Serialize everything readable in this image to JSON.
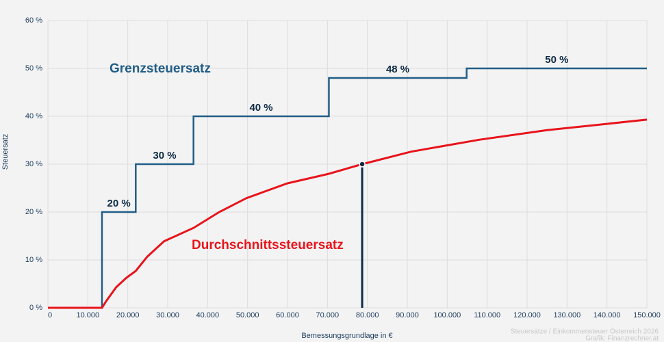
{
  "chart_data": {
    "type": "line",
    "x_label": "Bemessungsgrundlage in €",
    "y_label": "Steuersatz",
    "xlim": [
      0,
      150000
    ],
    "ylim": [
      0,
      60
    ],
    "xticks": [
      0,
      {
        "value": 10000,
        "label": "10.000"
      },
      {
        "value": 20000,
        "label": "20.000"
      },
      {
        "value": 30000,
        "label": "30.000"
      },
      {
        "value": 40000,
        "label": "40.000"
      },
      {
        "value": 50000,
        "label": "50.000"
      },
      {
        "value": 60000,
        "label": "60.000"
      },
      {
        "value": 70000,
        "label": "70.000"
      },
      {
        "value": 80000,
        "label": "80.000"
      },
      {
        "value": 90000,
        "label": "90.000"
      },
      {
        "value": 100000,
        "label": "100.000"
      },
      {
        "value": 110000,
        "label": "110.000"
      },
      {
        "value": 120000,
        "label": "120.000"
      },
      {
        "value": 130000,
        "label": "130.000"
      },
      {
        "value": 140000,
        "label": "140.000"
      },
      {
        "value": 150000,
        "label": "150.000"
      }
    ],
    "yticks": [
      {
        "value": 0,
        "label": "0 %"
      },
      {
        "value": 10,
        "label": "10 %"
      },
      {
        "value": 20,
        "label": "20 %"
      },
      {
        "value": 30,
        "label": "30 %"
      },
      {
        "value": 40,
        "label": "40 %"
      },
      {
        "value": 50,
        "label": "50 %"
      },
      {
        "value": 60,
        "label": "60 %"
      }
    ],
    "grid": true,
    "series": [
      {
        "name": "Grenzsteuersatz",
        "color": "#215d87",
        "x": [
          0,
          13539,
          13539,
          21992,
          21992,
          36458,
          36458,
          70365,
          70365,
          104859,
          104859,
          150000
        ],
        "values": [
          0,
          0,
          20,
          20,
          30,
          30,
          40,
          40,
          48,
          48,
          50,
          50
        ]
      },
      {
        "name": "Durchschnittssteuersatz",
        "color": "#e8141b",
        "x": [
          0,
          13539,
          14600,
          17100,
          19700,
          22000,
          24900,
          29100,
          36500,
          42900,
          49700,
          60000,
          70400,
          78700,
          90900,
          108000,
          125000,
          150000
        ],
        "values": [
          0,
          0,
          1.4,
          4.3,
          6.3,
          7.7,
          10.7,
          13.9,
          16.7,
          20,
          22.9,
          26,
          28,
          30,
          32.6,
          35.1,
          37.1,
          39.3
        ]
      }
    ],
    "annotations": [
      {
        "text": "20 %",
        "value": 20
      },
      {
        "text": "30 %",
        "value": 30
      },
      {
        "text": "40 %",
        "value": 40
      },
      {
        "text": "48 %",
        "value": 48
      },
      {
        "text": "50 %",
        "value": 50
      }
    ],
    "marker": {
      "x": 78700,
      "y": 30,
      "color": "#0d2a45"
    },
    "footer": [
      "Steuersätze / Einkommensteuer Österreich 2026",
      "Grafik: Finanzrechner.at"
    ]
  }
}
